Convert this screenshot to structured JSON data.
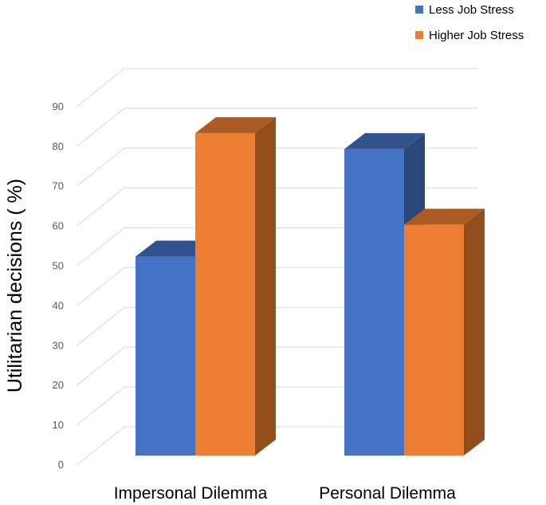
{
  "chart_data": {
    "type": "bar",
    "style": "3d-clustered-column",
    "categories": [
      "Impersonal Dilemma",
      "Personal Dilemma"
    ],
    "series": [
      {
        "name": "Less Job Stress",
        "values": [
          50,
          77
        ],
        "color": "#4472C4"
      },
      {
        "name": "Higher Job Stress",
        "values": [
          81,
          58
        ],
        "color": "#ED7D31"
      }
    ],
    "ylabel": "Utilitarian decisions ( %)",
    "ylim": [
      0,
      90
    ],
    "yticks": [
      0,
      10,
      20,
      30,
      40,
      50,
      60,
      70,
      80,
      90
    ],
    "grid": true,
    "legend_position": "top-right"
  }
}
